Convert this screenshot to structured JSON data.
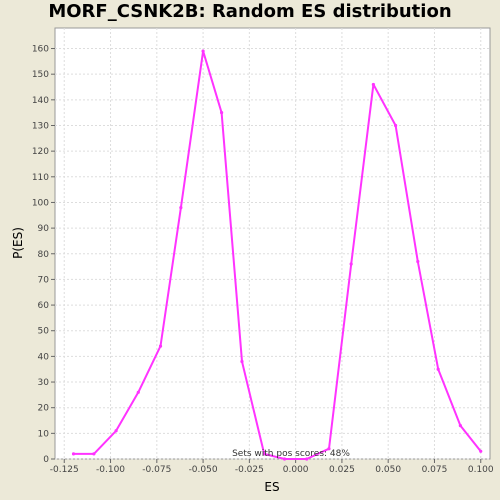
{
  "chart_data": {
    "type": "line",
    "title": "MORF_CSNK2B: Random ES distribution",
    "xlabel": "ES",
    "ylabel": "P(ES)",
    "xlim": [
      -0.13,
      0.105
    ],
    "ylim": [
      0,
      168
    ],
    "grid": true,
    "x_ticks": [
      -0.125,
      -0.1,
      -0.075,
      -0.05,
      -0.025,
      0.0,
      0.025,
      0.05,
      0.075,
      0.1
    ],
    "x_tick_labels": [
      "-0.125",
      "-0.100",
      "-0.075",
      "-0.050",
      "-0.025",
      "0.000",
      "0.025",
      "0.050",
      "0.075",
      "0.100"
    ],
    "y_ticks": [
      0,
      10,
      20,
      30,
      40,
      50,
      60,
      70,
      80,
      90,
      100,
      110,
      120,
      130,
      140,
      150,
      160
    ],
    "y_tick_labels": [
      "0",
      "10",
      "20",
      "30",
      "40",
      "50",
      "60",
      "70",
      "80",
      "90",
      "100",
      "110",
      "120",
      "130",
      "140",
      "150",
      "160"
    ],
    "series": [
      {
        "color": "#ff33ff",
        "points": [
          [
            -0.12,
            2
          ],
          [
            -0.109,
            2
          ],
          [
            -0.097,
            11
          ],
          [
            -0.085,
            26
          ],
          [
            -0.073,
            44
          ],
          [
            -0.062,
            98
          ],
          [
            -0.05,
            159
          ],
          [
            -0.04,
            135
          ],
          [
            -0.029,
            38
          ],
          [
            -0.017,
            2
          ],
          [
            -0.006,
            0
          ],
          [
            0.006,
            0
          ],
          [
            0.018,
            4
          ],
          [
            0.03,
            76
          ],
          [
            0.042,
            146
          ],
          [
            0.054,
            130
          ],
          [
            0.066,
            77
          ],
          [
            0.077,
            35
          ],
          [
            0.089,
            13
          ],
          [
            0.1,
            3
          ]
        ]
      }
    ],
    "annotation": "Sets with pos scores: 48%"
  }
}
